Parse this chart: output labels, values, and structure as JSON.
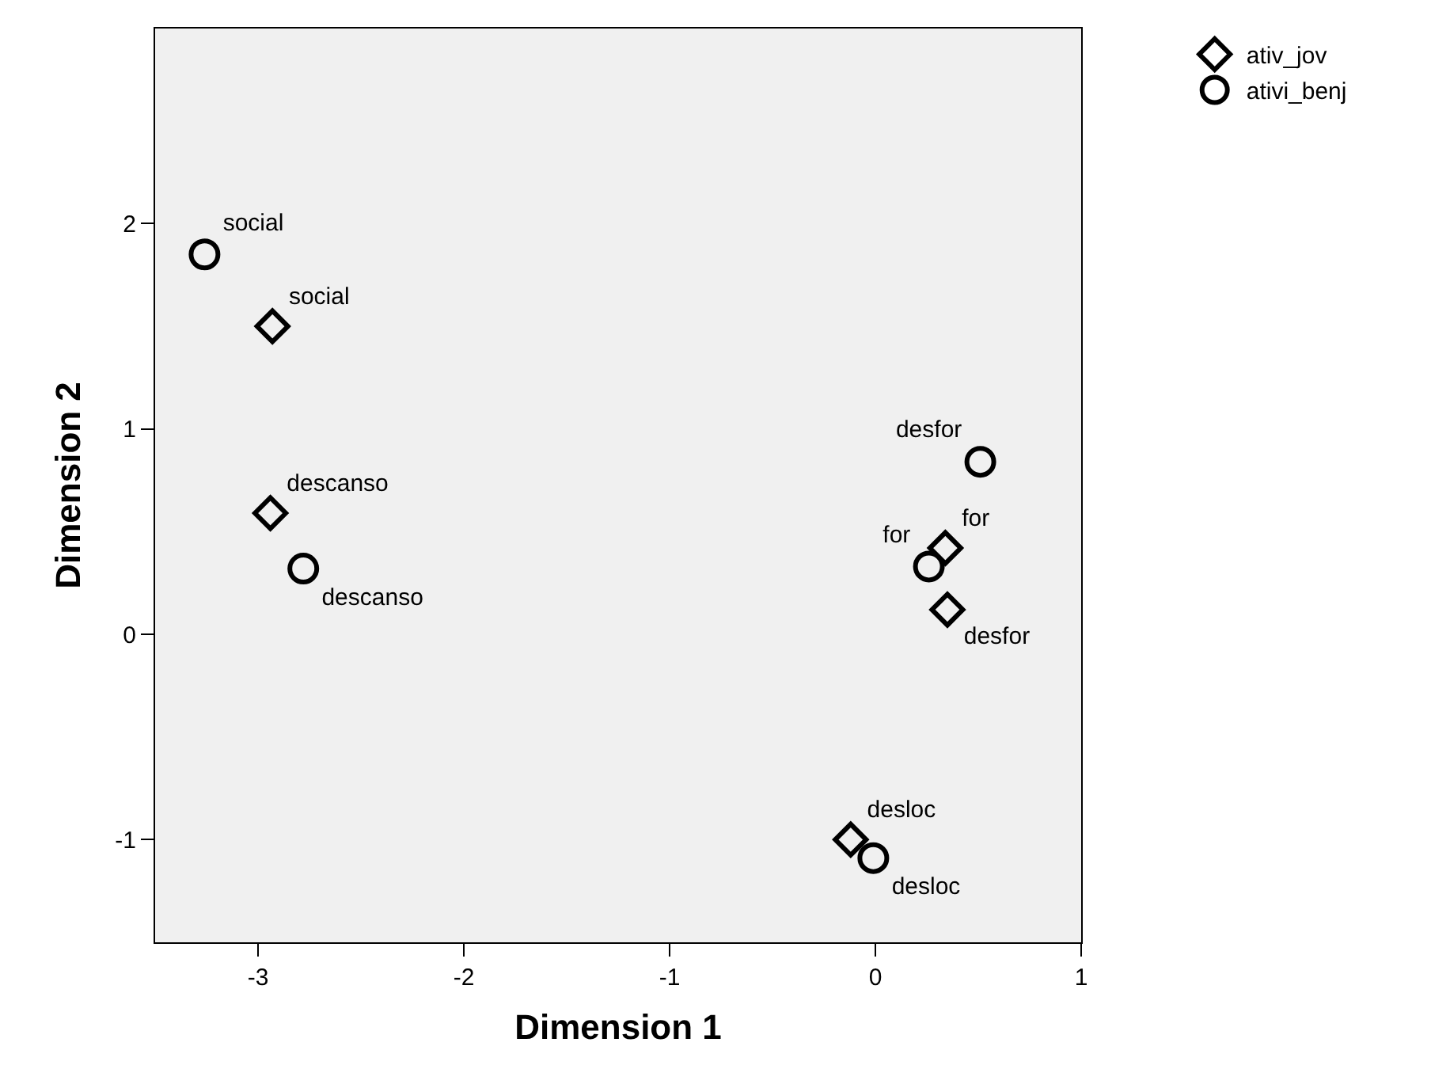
{
  "chart_data": {
    "type": "scatter",
    "xlabel": "Dimension 1",
    "ylabel": "Dimension 2",
    "xlim": [
      -3.5,
      1
    ],
    "xticks": [
      -3,
      -2,
      -1,
      0,
      1
    ],
    "ylim": [
      -1.5,
      2.95
    ],
    "yticks": [
      -1,
      0,
      1,
      2
    ],
    "grid": false,
    "legend": "top right",
    "series": [
      {
        "name": "ativ_jov",
        "color": "#000000",
        "marker": "diamond",
        "x": [
          -2.93,
          -2.94,
          0.34,
          0.35,
          -0.12
        ],
        "values": [
          1.5,
          0.59,
          0.42,
          0.12,
          -1.0
        ],
        "value_labels": [
          "social",
          "descanso",
          "for",
          "desfor",
          "desloc"
        ]
      },
      {
        "name": "ativi_benj",
        "color": "#000000",
        "marker": "circle",
        "x": [
          -3.26,
          -2.78,
          0.51,
          0.26,
          -0.01
        ],
        "values": [
          1.85,
          0.32,
          0.84,
          0.33,
          -1.09
        ],
        "value_labels": [
          "social",
          "descanso",
          "desfor",
          "for",
          "desloc"
        ]
      }
    ]
  }
}
